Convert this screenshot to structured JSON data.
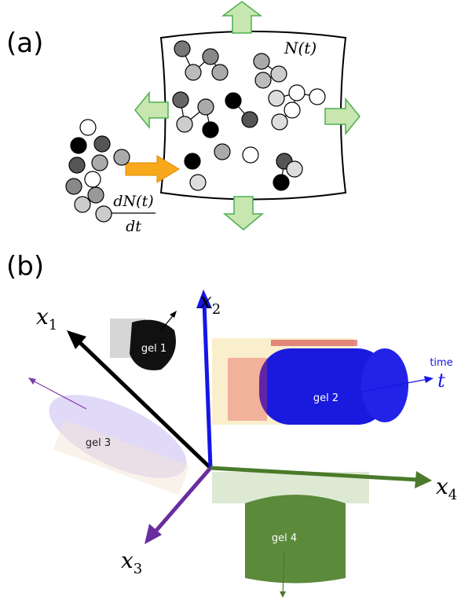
{
  "panel_a": {
    "label": "(a)",
    "population": {
      "base": "N",
      "arg": "(t)"
    },
    "rate": {
      "numerator": "dN(t)",
      "denominator": "dt"
    }
  },
  "panel_b": {
    "label": "(b)",
    "axes": [
      {
        "base": "x",
        "sub": "1"
      },
      {
        "base": "x",
        "sub": "2"
      },
      {
        "base": "x",
        "sub": "3"
      },
      {
        "base": "x",
        "sub": "4"
      }
    ],
    "gels": [
      "gel 1",
      "gel 2",
      "gel 3",
      "gel 4"
    ],
    "time_axis": {
      "word": "time",
      "symbol": "t"
    }
  }
}
